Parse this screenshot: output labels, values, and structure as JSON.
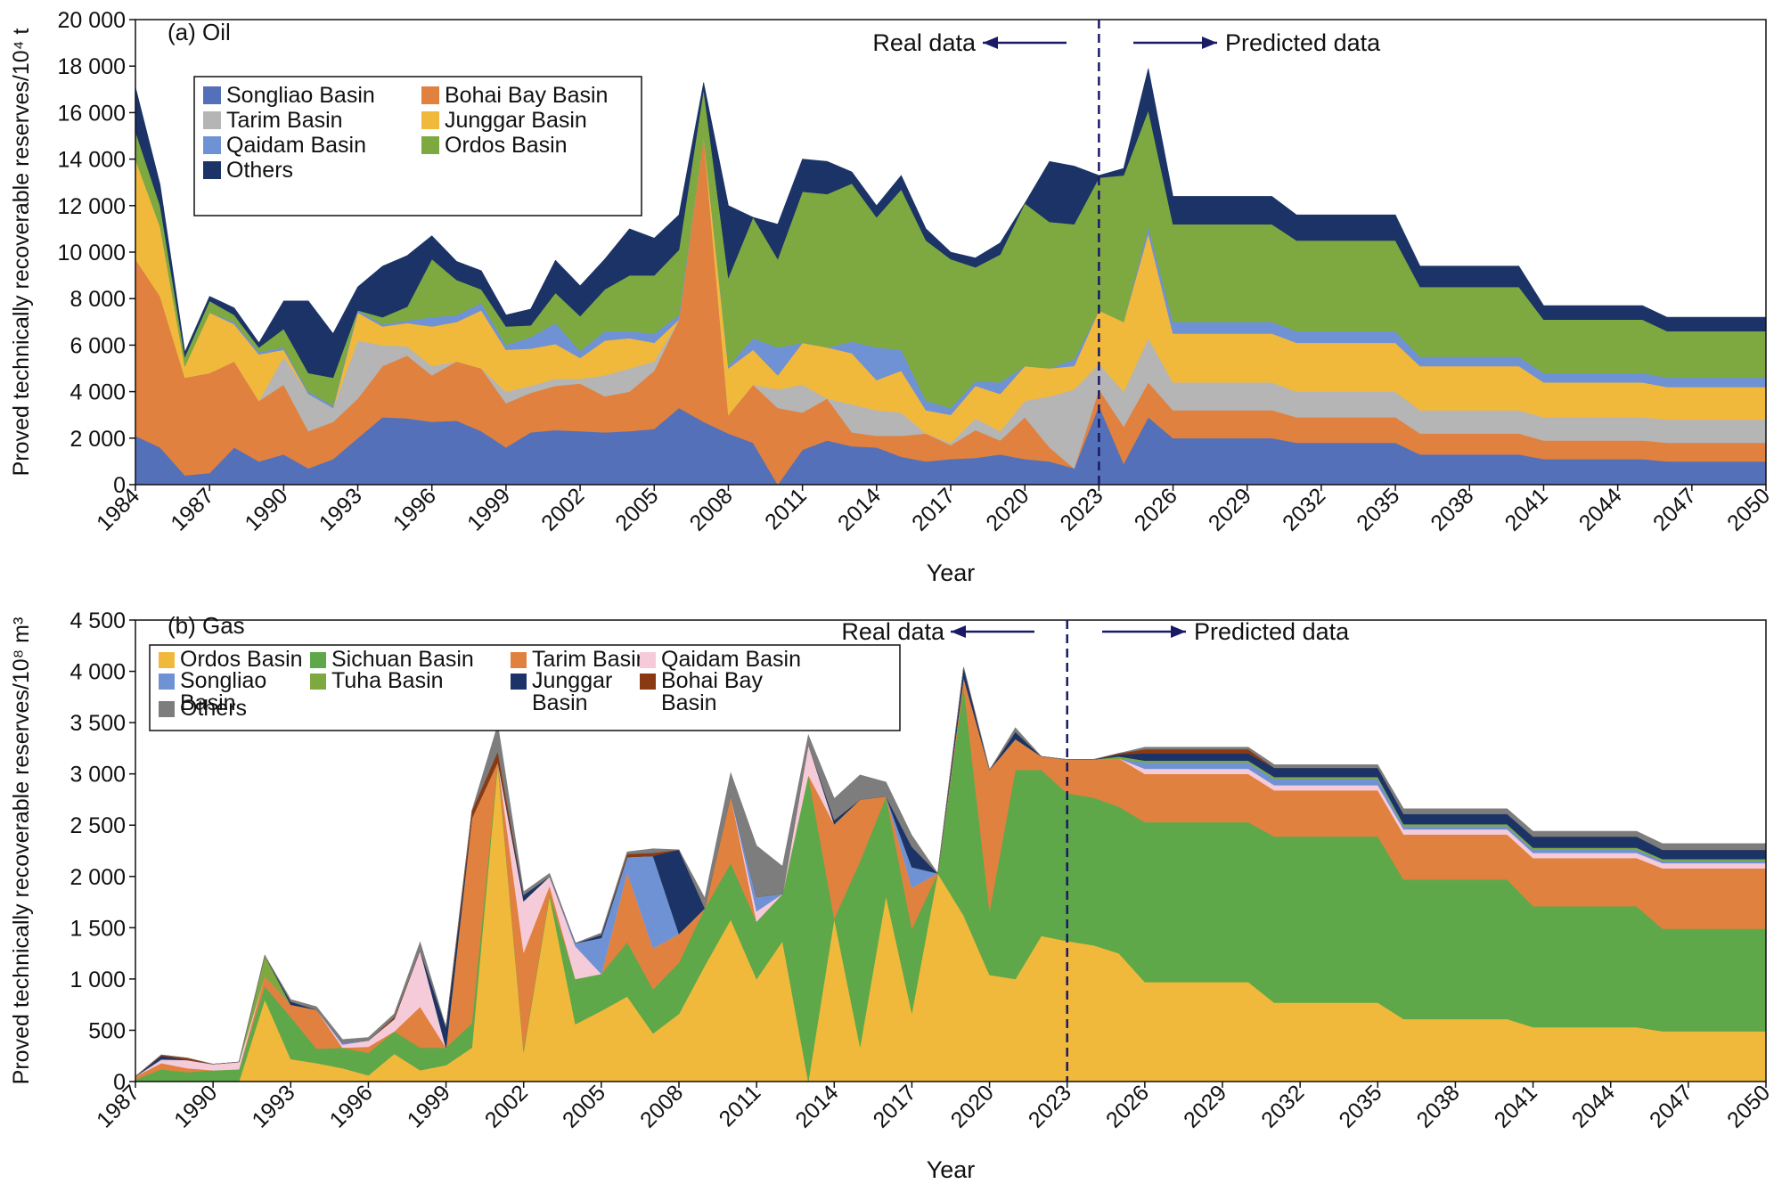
{
  "chart_data": [
    {
      "type": "area",
      "panel_label": "(a) Oil",
      "ylabel": "Proved technically recoverable reserves/10⁴ t",
      "xlabel": "Year",
      "ylim": [
        0,
        20000
      ],
      "yticks": [
        0,
        2000,
        4000,
        6000,
        8000,
        10000,
        12000,
        14000,
        16000,
        18000,
        20000
      ],
      "ytick_labels": [
        "0",
        "2 000",
        "4 000",
        "6 000",
        "8 000",
        "10 000",
        "12 000",
        "14 000",
        "16 000",
        "18 000",
        "20 000"
      ],
      "xlim": [
        1984,
        2050
      ],
      "xticks": [
        1984,
        1987,
        1990,
        1993,
        1996,
        1999,
        2002,
        2005,
        2008,
        2011,
        2014,
        2017,
        2020,
        2023,
        2026,
        2029,
        2032,
        2035,
        2038,
        2041,
        2044,
        2047,
        2050
      ],
      "divider_year": 2023,
      "real_label": "Real data",
      "predicted_label": "Predicted data",
      "legend_placement": "top-left",
      "x_points": [
        1984,
        1985,
        1986,
        1987,
        1988,
        1989,
        1990,
        1991,
        1992,
        1993,
        1994,
        1995,
        1996,
        1997,
        1998,
        1999,
        2000,
        2001,
        2002,
        2003,
        2004,
        2005,
        2006,
        2007,
        2008,
        2009,
        2010,
        2011,
        2012,
        2013,
        2014,
        2015,
        2016,
        2017,
        2018,
        2019,
        2020,
        2021,
        2022,
        2023,
        2024,
        2025,
        2026,
        2030,
        2031,
        2035,
        2036,
        2040,
        2041,
        2045,
        2046,
        2050
      ],
      "series": [
        {
          "name": "Songliao Basin",
          "color": "#5470b8",
          "values": [
            2100,
            1600,
            400,
            500,
            1600,
            1000,
            1300,
            700,
            1100,
            2000,
            2900,
            2850,
            2700,
            2750,
            2300,
            1600,
            2250,
            2350,
            2300,
            2250,
            2300,
            2400,
            3300,
            2700,
            2200,
            1800,
            0,
            1500,
            1900,
            1650,
            1600,
            1200,
            1000,
            1100,
            1150,
            1300,
            1100,
            1000,
            700,
            3400,
            900,
            2900,
            2000,
            2000,
            1800,
            1800,
            1300,
            1300,
            1100,
            1100,
            1000,
            1000
          ]
        },
        {
          "name": "Bohai Bay Basin",
          "color": "#e0813f",
          "values": [
            7600,
            6500,
            4200,
            4300,
            3700,
            2600,
            3000,
            1600,
            1600,
            1700,
            2200,
            2700,
            2000,
            2550,
            2700,
            1900,
            1700,
            1900,
            2050,
            1550,
            1700,
            2500,
            3800,
            12300,
            800,
            2500,
            3300,
            1600,
            1800,
            600,
            500,
            900,
            1200,
            600,
            1200,
            600,
            1800,
            600,
            0,
            700,
            1600,
            1500,
            1200,
            1200,
            1100,
            1100,
            900,
            900,
            800,
            800,
            800,
            800
          ]
        },
        {
          "name": "Tarim Basin",
          "color": "#b5b5b5",
          "values": [
            0,
            0,
            0,
            0,
            0,
            0,
            1200,
            1600,
            600,
            2500,
            900,
            400,
            400,
            0,
            0,
            500,
            300,
            300,
            200,
            900,
            1000,
            400,
            0,
            0,
            0,
            0,
            800,
            1200,
            0,
            1200,
            1100,
            1000,
            0,
            100,
            500,
            400,
            700,
            2200,
            3400,
            1100,
            1500,
            1900,
            1200,
            1200,
            1100,
            1100,
            1000,
            1000,
            1000,
            1000,
            1000,
            1000
          ]
        },
        {
          "name": "Junggar Basin",
          "color": "#f1b93b",
          "values": [
            4300,
            3000,
            500,
            2600,
            1600,
            2000,
            300,
            0,
            0,
            1200,
            800,
            1000,
            1700,
            1700,
            2500,
            1800,
            1600,
            1500,
            900,
            1500,
            1300,
            800,
            0,
            0,
            2000,
            1500,
            600,
            1800,
            2200,
            2200,
            1300,
            1800,
            1000,
            1200,
            1400,
            1600,
            1500,
            1200,
            1000,
            2300,
            3000,
            4500,
            2100,
            2100,
            2100,
            2100,
            1900,
            1900,
            1500,
            1500,
            1400,
            1400
          ]
        },
        {
          "name": "Qaidam Basin",
          "color": "#6f92d4",
          "values": [
            0,
            0,
            0,
            0,
            100,
            100,
            100,
            100,
            100,
            100,
            100,
            100,
            400,
            300,
            300,
            200,
            500,
            900,
            300,
            400,
            300,
            400,
            200,
            0,
            100,
            500,
            1200,
            0,
            0,
            500,
            1400,
            900,
            400,
            300,
            200,
            500,
            0,
            0,
            300,
            0,
            0,
            300,
            500,
            500,
            500,
            500,
            400,
            400,
            400,
            400,
            400,
            400
          ]
        },
        {
          "name": "Ordos Basin",
          "color": "#7ea941",
          "values": [
            1200,
            900,
            400,
            500,
            300,
            200,
            800,
            800,
            1200,
            0,
            300,
            600,
            2500,
            1500,
            600,
            800,
            500,
            1300,
            1500,
            1800,
            2400,
            2500,
            2800,
            2000,
            3800,
            5200,
            3800,
            6500,
            6600,
            6800,
            5600,
            6900,
            6900,
            6400,
            4900,
            5500,
            7000,
            6300,
            5800,
            5700,
            6300,
            5000,
            4200,
            4200,
            3900,
            3900,
            3000,
            3000,
            2300,
            2300,
            2000,
            2000
          ]
        },
        {
          "name": "Others",
          "color": "#1b3366",
          "values": [
            1900,
            900,
            200,
            200,
            300,
            200,
            1200,
            3100,
            1900,
            1000,
            2200,
            2200,
            1000,
            800,
            800,
            500,
            700,
            1400,
            1300,
            1300,
            2000,
            1600,
            1500,
            300,
            3100,
            0,
            1500,
            1400,
            1400,
            500,
            500,
            600,
            500,
            300,
            400,
            500,
            0,
            2600,
            2500,
            100,
            300,
            1800,
            1200,
            1200,
            1100,
            1100,
            900,
            900,
            600,
            600,
            600,
            600
          ]
        }
      ]
    },
    {
      "type": "area",
      "panel_label": "(b) Gas",
      "ylabel": "Proved technically recoverable reserves/10⁸ m³",
      "xlabel": "Year",
      "ylim": [
        0,
        4500
      ],
      "yticks": [
        0,
        500,
        1000,
        1500,
        2000,
        2500,
        3000,
        3500,
        4000,
        4500
      ],
      "ytick_labels": [
        "0",
        "500",
        "1 000",
        "1 500",
        "2 000",
        "2 500",
        "3 000",
        "3 500",
        "4 000",
        "4 500"
      ],
      "xlim": [
        1987,
        2050
      ],
      "xticks": [
        1987,
        1990,
        1993,
        1996,
        1999,
        2002,
        2005,
        2008,
        2011,
        2014,
        2017,
        2020,
        2023,
        2026,
        2029,
        2032,
        2035,
        2038,
        2041,
        2044,
        2047,
        2050
      ],
      "divider_year": 2023,
      "real_label": "Real data",
      "predicted_label": "Predicted data",
      "legend_placement": "top-left",
      "x_points": [
        1987,
        1988,
        1989,
        1990,
        1991,
        1992,
        1993,
        1994,
        1995,
        1996,
        1997,
        1998,
        1999,
        2000,
        2001,
        2002,
        2003,
        2004,
        2005,
        2006,
        2007,
        2008,
        2009,
        2010,
        2011,
        2012,
        2013,
        2014,
        2015,
        2016,
        2017,
        2018,
        2019,
        2020,
        2021,
        2022,
        2023,
        2024,
        2025,
        2026,
        2030,
        2031,
        2035,
        2036,
        2040,
        2041,
        2045,
        2046,
        2050
      ],
      "series": [
        {
          "name": "Ordos Basin",
          "color": "#f1b93b",
          "values": [
            0,
            0,
            0,
            0,
            0,
            800,
            220,
            180,
            130,
            60,
            270,
            110,
            160,
            330,
            3100,
            290,
            1810,
            560,
            690,
            830,
            470,
            660,
            1130,
            1580,
            1000,
            1370,
            0,
            1590,
            340,
            1810,
            670,
            2030,
            1620,
            1040,
            1000,
            1420,
            1370,
            1330,
            1250,
            970,
            970,
            770,
            770,
            610,
            610,
            530,
            530,
            490,
            490
          ]
        },
        {
          "name": "Sichuan Basin",
          "color": "#5ea84a",
          "values": [
            20,
            120,
            90,
            110,
            120,
            130,
            410,
            140,
            200,
            220,
            220,
            220,
            170,
            240,
            20,
            20,
            20,
            440,
            360,
            530,
            430,
            500,
            560,
            550,
            560,
            460,
            2990,
            0,
            1810,
            970,
            820,
            0,
            2240,
            620,
            2040,
            1620,
            1440,
            1440,
            1430,
            1560,
            1560,
            1620,
            1620,
            1360,
            1360,
            1180,
            1180,
            1000,
            1000
          ]
        },
        {
          "name": "Tarim Basin",
          "color": "#e0813f",
          "values": [
            30,
            60,
            40,
            0,
            0,
            100,
            120,
            380,
            0,
            60,
            0,
            400,
            0,
            2000,
            0,
            950,
            80,
            0,
            0,
            680,
            400,
            280,
            0,
            660,
            0,
            0,
            0,
            920,
            600,
            0,
            400,
            0,
            80,
            1380,
            300,
            130,
            330,
            370,
            470,
            470,
            470,
            450,
            450,
            440,
            440,
            470,
            470,
            590,
            590
          ]
        },
        {
          "name": "Qaidam Basin",
          "color": "#f6cbd9",
          "values": [
            0,
            30,
            80,
            60,
            70,
            0,
            0,
            0,
            30,
            60,
            120,
            550,
            0,
            0,
            0,
            500,
            90,
            320,
            0,
            0,
            0,
            0,
            0,
            0,
            100,
            0,
            300,
            0,
            0,
            0,
            0,
            0,
            0,
            0,
            0,
            0,
            0,
            0,
            0,
            50,
            50,
            50,
            50,
            50,
            50,
            50,
            50,
            50,
            50
          ]
        },
        {
          "name": "Songliao Basin",
          "color": "#6f92d4",
          "values": [
            0,
            10,
            0,
            0,
            0,
            0,
            0,
            0,
            20,
            0,
            0,
            0,
            0,
            0,
            0,
            0,
            0,
            30,
            350,
            150,
            900,
            0,
            0,
            0,
            140,
            0,
            0,
            0,
            0,
            0,
            200,
            0,
            0,
            0,
            0,
            0,
            0,
            0,
            0,
            60,
            60,
            60,
            60,
            30,
            30,
            30,
            30,
            20,
            20
          ]
        },
        {
          "name": "Tuha Basin",
          "color": "#7ea941",
          "values": [
            0,
            0,
            0,
            0,
            0,
            200,
            0,
            0,
            0,
            0,
            0,
            0,
            0,
            0,
            0,
            0,
            0,
            0,
            0,
            0,
            0,
            0,
            0,
            0,
            0,
            0,
            0,
            0,
            0,
            0,
            0,
            0,
            0,
            0,
            0,
            0,
            0,
            0,
            20,
            20,
            20,
            20,
            20,
            20,
            20,
            20,
            20,
            20,
            20
          ]
        },
        {
          "name": "Junggar Basin",
          "color": "#1b3366",
          "values": [
            0,
            30,
            0,
            0,
            0,
            0,
            30,
            0,
            0,
            0,
            0,
            0,
            200,
            0,
            0,
            60,
            0,
            0,
            30,
            0,
            0,
            820,
            0,
            0,
            0,
            0,
            0,
            40,
            0,
            0,
            200,
            0,
            100,
            0,
            70,
            0,
            0,
            0,
            20,
            70,
            70,
            90,
            90,
            100,
            100,
            110,
            110,
            90,
            90
          ]
        },
        {
          "name": "Bohai Bay Basin",
          "color": "#8a3a12",
          "values": [
            0,
            10,
            20,
            0,
            0,
            0,
            0,
            0,
            0,
            0,
            20,
            0,
            0,
            70,
            100,
            0,
            0,
            0,
            0,
            30,
            30,
            0,
            0,
            0,
            0,
            0,
            0,
            0,
            0,
            0,
            0,
            0,
            0,
            0,
            0,
            0,
            0,
            0,
            10,
            40,
            40,
            0,
            0,
            0,
            0,
            0,
            0,
            0,
            0
          ]
        },
        {
          "name": "Others",
          "color": "#7d7d7d",
          "values": [
            0,
            0,
            0,
            0,
            0,
            0,
            20,
            30,
            30,
            30,
            30,
            80,
            0,
            0,
            260,
            30,
            30,
            0,
            20,
            20,
            40,
            0,
            100,
            220,
            500,
            270,
            90,
            210,
            240,
            140,
            110,
            0,
            0,
            0,
            40,
            0,
            0,
            0,
            0,
            20,
            20,
            30,
            30,
            50,
            50,
            50,
            50,
            60,
            60
          ]
        }
      ]
    }
  ]
}
